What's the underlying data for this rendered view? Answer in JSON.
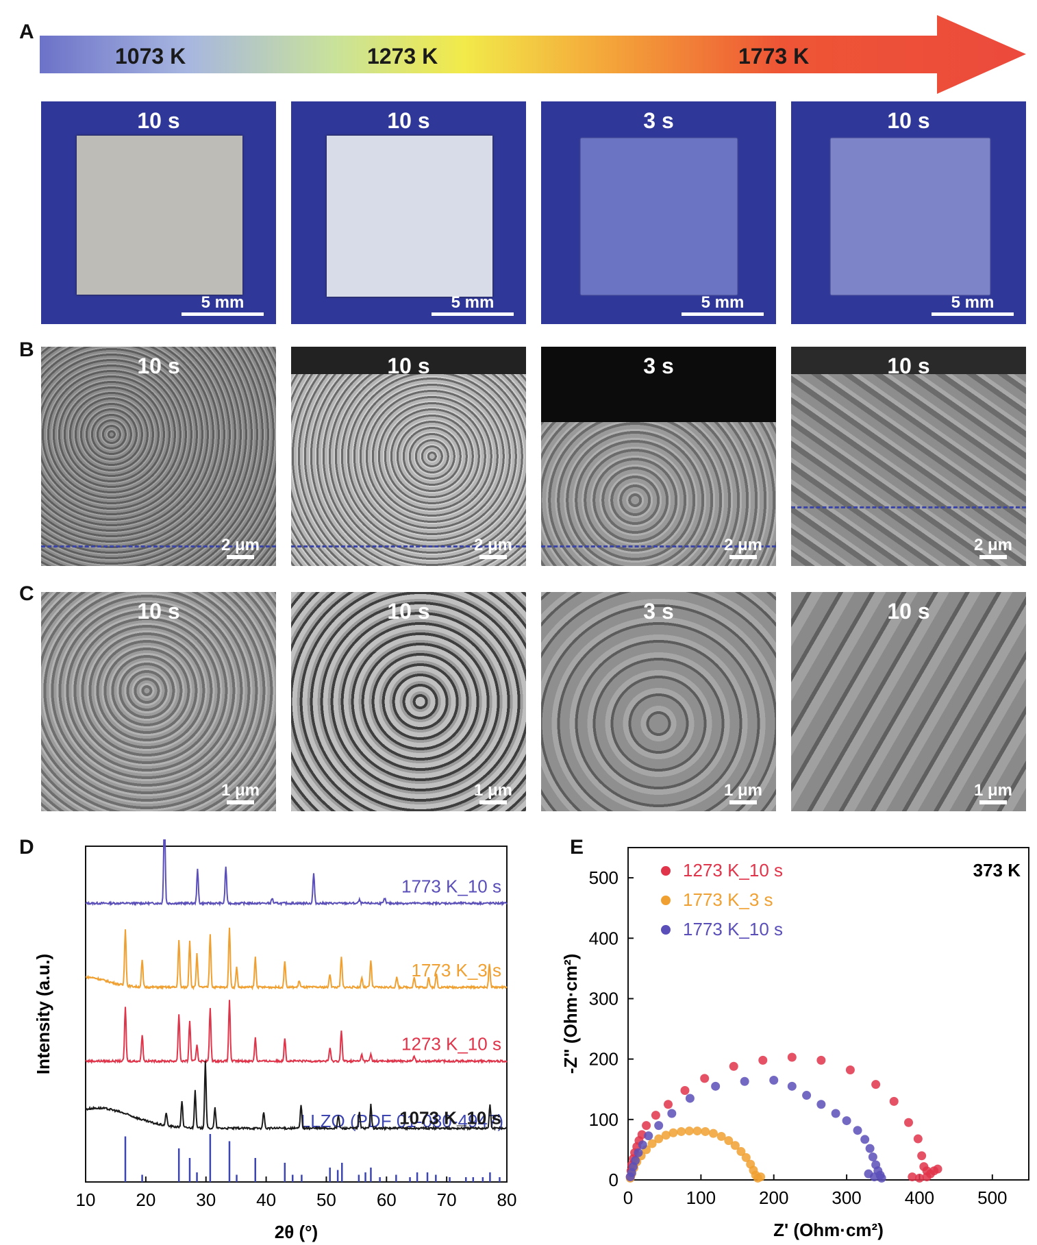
{
  "panels": {
    "A": {
      "letter": "A",
      "arrow_labels": [
        "1073 K",
        "1273 K",
        "1773 K"
      ],
      "tiles": [
        {
          "time": "10 s",
          "scale": "5 mm"
        },
        {
          "time": "10 s",
          "scale": "5 mm"
        },
        {
          "time": "3 s",
          "scale": "5 mm"
        },
        {
          "time": "10 s",
          "scale": "5 mm"
        }
      ]
    },
    "B": {
      "letter": "B",
      "tiles": [
        {
          "time": "10 s",
          "scale": "2 μm"
        },
        {
          "time": "10 s",
          "scale": "2 μm"
        },
        {
          "time": "3 s",
          "scale": "2 μm"
        },
        {
          "time": "10 s",
          "scale": "2 μm"
        }
      ]
    },
    "C": {
      "letter": "C",
      "tiles": [
        {
          "time": "10 s",
          "scale": "1 μm"
        },
        {
          "time": "10 s",
          "scale": "1 μm"
        },
        {
          "time": "3 s",
          "scale": "1 μm"
        },
        {
          "time": "10 s",
          "scale": "1 μm"
        }
      ]
    },
    "D": {
      "letter": "D"
    },
    "E": {
      "letter": "E"
    }
  },
  "colors": {
    "sample_blue_bg": "#2d3595",
    "llzo": "#3d46b0",
    "s1073": "#1a1a1a",
    "s1273": "#e0344a",
    "s1773_3": "#f0a030",
    "s1773_10": "#5a4fb8"
  },
  "chart_data": [
    {
      "type": "line",
      "xlabel": "2θ (°)",
      "ylabel": "Intensity (a.u.)",
      "xlim": [
        10,
        80
      ],
      "xticks": [
        10,
        20,
        30,
        40,
        50,
        60,
        70,
        80
      ],
      "series": [
        {
          "name": "1773 K_10 s",
          "color": "#5a4fb8",
          "baseline": 0.83,
          "peaks": [
            [
              23.1,
              0.26
            ],
            [
              28.6,
              0.1
            ],
            [
              33.3,
              0.11
            ],
            [
              41,
              0.015
            ],
            [
              47.9,
              0.09
            ],
            [
              55.5,
              0.01
            ],
            [
              59.7,
              0.015
            ]
          ]
        },
        {
          "name": "1773 K_3 s",
          "color": "#f0a030",
          "baseline": 0.58,
          "peaks": [
            [
              16.6,
              0.17
            ],
            [
              19.4,
              0.08
            ],
            [
              25.5,
              0.14
            ],
            [
              27.3,
              0.14
            ],
            [
              28.5,
              0.1
            ],
            [
              30.7,
              0.16
            ],
            [
              33.9,
              0.18
            ],
            [
              35.1,
              0.06
            ],
            [
              38.2,
              0.09
            ],
            [
              43.1,
              0.08
            ],
            [
              45.5,
              0.02
            ],
            [
              50.6,
              0.04
            ],
            [
              52.5,
              0.09
            ],
            [
              55.9,
              0.03
            ],
            [
              57.4,
              0.08
            ],
            [
              61.7,
              0.03
            ],
            [
              64.6,
              0.03
            ],
            [
              67,
              0.03
            ],
            [
              68.3,
              0.04
            ],
            [
              77.1,
              0.07
            ]
          ]
        },
        {
          "name": "1273 K_10 s",
          "color": "#e0344a",
          "baseline": 0.36,
          "peaks": [
            [
              16.6,
              0.16
            ],
            [
              19.4,
              0.08
            ],
            [
              25.5,
              0.14
            ],
            [
              27.3,
              0.12
            ],
            [
              28.5,
              0.05
            ],
            [
              30.7,
              0.16
            ],
            [
              33.9,
              0.18
            ],
            [
              38.2,
              0.07
            ],
            [
              43.1,
              0.07
            ],
            [
              50.6,
              0.04
            ],
            [
              52.5,
              0.09
            ],
            [
              55.9,
              0.02
            ],
            [
              57.4,
              0.02
            ],
            [
              64.6,
              0.015
            ]
          ]
        },
        {
          "name": "1073 K_10 s",
          "color": "#1a1a1a",
          "baseline": 0.14,
          "peaks": [
            [
              23.4,
              0.04
            ],
            [
              26,
              0.08
            ],
            [
              28.2,
              0.11
            ],
            [
              29.9,
              0.2
            ],
            [
              31.5,
              0.06
            ],
            [
              39.6,
              0.05
            ],
            [
              45.8,
              0.07
            ],
            [
              52,
              0.04
            ],
            [
              55.5,
              0.05
            ],
            [
              57.4,
              0.07
            ],
            [
              77.2,
              0.07
            ]
          ]
        }
      ],
      "reference": {
        "name": "LLZO (PDF 01-080-4947)",
        "color": "#3d46b0",
        "lines": [
          [
            16.6,
            0.95
          ],
          [
            19.4,
            0.15
          ],
          [
            25.5,
            0.7
          ],
          [
            27.3,
            0.5
          ],
          [
            28.5,
            0.2
          ],
          [
            30.7,
            1.0
          ],
          [
            33.9,
            0.85
          ],
          [
            35.1,
            0.15
          ],
          [
            38.2,
            0.5
          ],
          [
            43.1,
            0.4
          ],
          [
            44.4,
            0.15
          ],
          [
            45.9,
            0.15
          ],
          [
            50.6,
            0.3
          ],
          [
            51.9,
            0.25
          ],
          [
            52.6,
            0.4
          ],
          [
            55.4,
            0.15
          ],
          [
            56.5,
            0.2
          ],
          [
            57.4,
            0.3
          ],
          [
            58.9,
            0.1
          ],
          [
            61.6,
            0.15
          ],
          [
            63.9,
            0.1
          ],
          [
            65.1,
            0.2
          ],
          [
            66.8,
            0.2
          ],
          [
            68.2,
            0.15
          ],
          [
            70.5,
            0.1
          ],
          [
            73.2,
            0.1
          ],
          [
            74.4,
            0.1
          ],
          [
            76,
            0.1
          ],
          [
            77.2,
            0.2
          ],
          [
            78.8,
            0.1
          ]
        ]
      }
    },
    {
      "type": "scatter",
      "title": "373 K",
      "xlabel": "Z' (Ohm·cm²)",
      "ylabel": "-Z\" (Ohm·cm²)",
      "xlim": [
        0,
        550
      ],
      "ylim": [
        0,
        550
      ],
      "xticks": [
        0,
        100,
        200,
        300,
        400,
        500
      ],
      "yticks": [
        0,
        100,
        200,
        300,
        400,
        500
      ],
      "series": [
        {
          "name": "1273 K_10 s",
          "color": "#e0344a",
          "points": [
            [
              3,
              5
            ],
            [
              4,
              15
            ],
            [
              5,
              25
            ],
            [
              7,
              35
            ],
            [
              9,
              45
            ],
            [
              12,
              55
            ],
            [
              15,
              65
            ],
            [
              19,
              75
            ],
            [
              25,
              90
            ],
            [
              38,
              107
            ],
            [
              55,
              125
            ],
            [
              78,
              148
            ],
            [
              105,
              168
            ],
            [
              145,
              188
            ],
            [
              185,
              198
            ],
            [
              225,
              203
            ],
            [
              265,
              198
            ],
            [
              305,
              182
            ],
            [
              340,
              158
            ],
            [
              365,
              130
            ],
            [
              385,
              95
            ],
            [
              398,
              68
            ],
            [
              403,
              40
            ],
            [
              406,
              22
            ],
            [
              410,
              15
            ],
            [
              415,
              10
            ],
            [
              420,
              15
            ],
            [
              425,
              18
            ],
            [
              410,
              5
            ],
            [
              400,
              3
            ],
            [
              390,
              5
            ]
          ]
        },
        {
          "name": "1773 K_3 s",
          "color": "#f0a030",
          "points": [
            [
              3,
              3
            ],
            [
              5,
              10
            ],
            [
              8,
              20
            ],
            [
              12,
              30
            ],
            [
              18,
              40
            ],
            [
              25,
              50
            ],
            [
              33,
              60
            ],
            [
              42,
              68
            ],
            [
              52,
              74
            ],
            [
              62,
              78
            ],
            [
              73,
              80
            ],
            [
              84,
              81
            ],
            [
              95,
              81
            ],
            [
              106,
              80
            ],
            [
              117,
              77
            ],
            [
              128,
              72
            ],
            [
              138,
              65
            ],
            [
              147,
              57
            ],
            [
              155,
              47
            ],
            [
              162,
              37
            ],
            [
              168,
              26
            ],
            [
              172,
              16
            ],
            [
              175,
              8
            ],
            [
              178,
              3
            ],
            [
              182,
              5
            ]
          ]
        },
        {
          "name": "1773 K_10 s",
          "color": "#5a4fb8",
          "points": [
            [
              3,
              5
            ],
            [
              5,
              12
            ],
            [
              7,
              22
            ],
            [
              10,
              32
            ],
            [
              14,
              45
            ],
            [
              20,
              58
            ],
            [
              28,
              73
            ],
            [
              42,
              90
            ],
            [
              60,
              110
            ],
            [
              85,
              135
            ],
            [
              120,
              155
            ],
            [
              160,
              163
            ],
            [
              200,
              165
            ],
            [
              225,
              155
            ],
            [
              245,
              140
            ],
            [
              265,
              125
            ],
            [
              285,
              110
            ],
            [
              300,
              98
            ],
            [
              315,
              82
            ],
            [
              325,
              67
            ],
            [
              332,
              52
            ],
            [
              336,
              38
            ],
            [
              340,
              25
            ],
            [
              343,
              15
            ],
            [
              346,
              8
            ],
            [
              348,
              3
            ],
            [
              338,
              5
            ],
            [
              330,
              10
            ]
          ]
        }
      ]
    }
  ]
}
